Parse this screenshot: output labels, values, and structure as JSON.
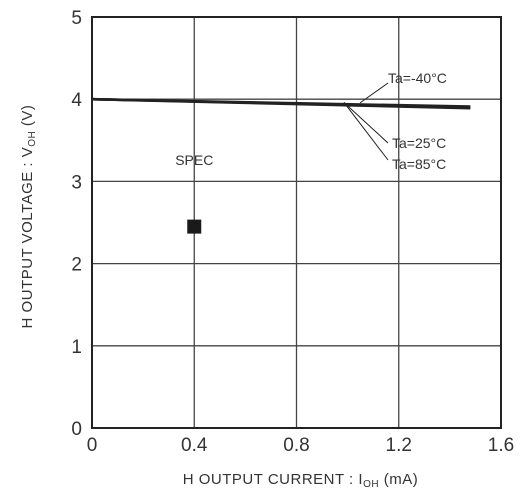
{
  "chart_data": {
    "type": "line",
    "title": "",
    "xlabel": "H  OUTPUT  CURRENT : I",
    "xlabel_sub": "OH",
    "xlabel_unit": " (mA)",
    "ylabel": "H  OUTPUT  VOLTAGE : V",
    "ylabel_sub": "OH",
    "ylabel_unit": " (V)",
    "xlim": [
      0,
      1.6
    ],
    "ylim": [
      0,
      5
    ],
    "x_ticks": [
      0,
      0.4,
      0.8,
      1.2,
      1.6
    ],
    "x_tick_labels": [
      "0",
      "0.4",
      "0.8",
      "1.2",
      "1.6"
    ],
    "y_ticks": [
      0,
      1,
      2,
      3,
      4,
      5
    ],
    "y_tick_labels": [
      "0",
      "1",
      "2",
      "3",
      "4",
      "5"
    ],
    "grid": true,
    "series": [
      {
        "name": "Ta=-40°C",
        "x": [
          0,
          1.48
        ],
        "y": [
          4.0,
          3.91
        ]
      },
      {
        "name": "Ta=25°C",
        "x": [
          0,
          1.48
        ],
        "y": [
          4.0,
          3.9
        ]
      },
      {
        "name": "Ta=85°C",
        "x": [
          0,
          1.48
        ],
        "y": [
          4.0,
          3.89
        ]
      }
    ],
    "spec": {
      "label": "SPEC",
      "x": 0.4,
      "y": 2.45
    },
    "annotations": [
      "Ta=-40°C",
      "Ta=25°C",
      "Ta=85°C"
    ],
    "colors": {
      "line": "#222222",
      "grid": "#444444",
      "text": "#333333"
    }
  }
}
